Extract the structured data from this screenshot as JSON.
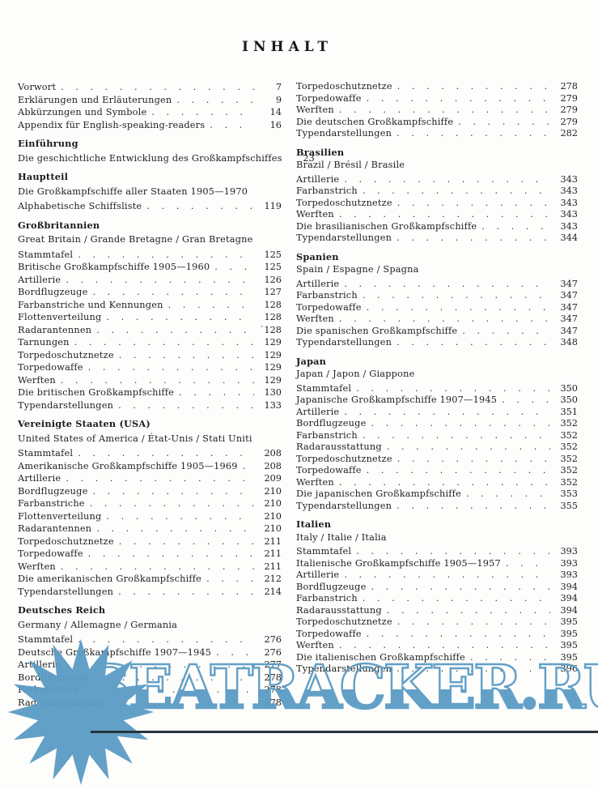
{
  "page": {
    "title": "INHALT"
  },
  "watermark": {
    "text": "SEATRACKER.RU",
    "color": "#5b9cc5",
    "icon": "sunburst-icon"
  },
  "toc": {
    "left": [
      {
        "entries": [
          {
            "label": "Vorwort",
            "page": "7"
          },
          {
            "label": "Erklärungen und Erläuterungen",
            "page": "9"
          },
          {
            "label": "Abkürzungen und Symbole",
            "page": "14"
          },
          {
            "label": "Appendix für English-speaking-readers",
            "page": "16"
          }
        ]
      },
      {
        "heading": "Einführung",
        "entries": [
          {
            "label": "Die geschichtliche Entwicklung des Großkampfschiffes",
            "page": "23"
          }
        ]
      },
      {
        "heading": "Hauptteil",
        "subtitle": "Die Großkampfschiffe aller Staaten 1905—1970",
        "entries": [
          {
            "label": "Alphabetische Schiffsliste",
            "page": "119"
          }
        ]
      },
      {
        "heading": "Großbritannien",
        "subtitle": "Great Britain / Grande Bretagne / Gran Bretagne",
        "entries": [
          {
            "label": "Stammtafel",
            "page": "125"
          },
          {
            "label": "Britische Großkampfschiffe 1905—1960",
            "page": "125"
          },
          {
            "label": "Artillerie",
            "page": "126"
          },
          {
            "label": "Bordflugzeuge",
            "page": "127"
          },
          {
            "label": "Farbanstriche und Kennungen",
            "page": "128"
          },
          {
            "label": "Flottenverteilung",
            "page": "128"
          },
          {
            "label": "Radarantennen",
            "page": "˙128"
          },
          {
            "label": "Tarnungen",
            "page": "129"
          },
          {
            "label": "Torpedoschutznetze",
            "page": "129"
          },
          {
            "label": "Torpedowaffe",
            "page": "129"
          },
          {
            "label": "Werften",
            "page": "129"
          },
          {
            "label": "Die britischen Großkampfschiffe",
            "page": "130"
          },
          {
            "label": "Typendarstellungen",
            "page": "133"
          }
        ]
      },
      {
        "heading": "Vereinigte Staaten (USA)",
        "subtitle": "United States of America / État-Unis / Stati Uniti",
        "entries": [
          {
            "label": "Stammtafel",
            "page": "208"
          },
          {
            "label": "Amerikanische Großkampfschiffe 1905—1969",
            "page": "208"
          },
          {
            "label": "Artillerie",
            "page": "209"
          },
          {
            "label": "Bordflugzeuge",
            "page": "210"
          },
          {
            "label": "Farbanstriche",
            "page": "210"
          },
          {
            "label": "Flottenverteilung",
            "page": "210"
          },
          {
            "label": "Radarantennen",
            "page": "210"
          },
          {
            "label": "Torpedoschutznetze",
            "page": "211"
          },
          {
            "label": "Torpedowaffe",
            "page": "211"
          },
          {
            "label": "Werften",
            "page": "211"
          },
          {
            "label": "Die amerikanischen Großkampfschiffe",
            "page": "212"
          },
          {
            "label": "Typendarstellungen",
            "page": "214"
          }
        ]
      },
      {
        "heading": "Deutsches Reich",
        "subtitle": "Germany / Allemagne / Germania",
        "entries": [
          {
            "label": "Stammtafel",
            "page": "276"
          },
          {
            "label": "Deutsche Großkampfschiffe 1907—1945",
            "page": "276"
          },
          {
            "label": "Artillerie",
            "page": "277"
          },
          {
            "label": "Bordflugzeuge",
            "page": "278"
          },
          {
            "label": "Farbanstrich",
            "page": "278"
          },
          {
            "label": "Radarausstattung",
            "page": "278"
          }
        ]
      }
    ],
    "right": [
      {
        "entries": [
          {
            "label": "Torpedoschutznetze",
            "page": "278"
          },
          {
            "label": "Torpedowaffe",
            "page": "279"
          },
          {
            "label": "Werften",
            "page": "279"
          },
          {
            "label": "Die deutschen Großkampfschiffe",
            "page": "279"
          },
          {
            "label": "Typendarstellungen",
            "page": "282"
          }
        ]
      },
      {
        "heading": "Brasilien",
        "subtitle": "Brazil / Brésil / Brasile",
        "entries": [
          {
            "label": "Artillerie",
            "page": "343"
          },
          {
            "label": "Farbanstrich",
            "page": "343"
          },
          {
            "label": "Torpedoschutznetze",
            "page": "343"
          },
          {
            "label": "Werften",
            "page": "343"
          },
          {
            "label": "Die brasilianischen Großkampfschiffe",
            "page": "343"
          },
          {
            "label": "Typendarstellungen",
            "page": "344"
          }
        ]
      },
      {
        "heading": "Spanien",
        "subtitle": "Spain / Espagne / Spagna",
        "entries": [
          {
            "label": "Artillerie",
            "page": "347"
          },
          {
            "label": "Farbanstrich",
            "page": "347"
          },
          {
            "label": "Torpedowaffe",
            "page": "347"
          },
          {
            "label": "Werften",
            "page": "347"
          },
          {
            "label": "Die spanischen Großkampfschiffe",
            "page": "347"
          },
          {
            "label": "Typendarstellungen",
            "page": "348"
          }
        ]
      },
      {
        "heading": "Japan",
        "subtitle": "Japan / Japon / Giappone",
        "entries": [
          {
            "label": "Stammtafel",
            "page": "350"
          },
          {
            "label": "Japanische Großkampfschiffe 1907—1945",
            "page": "350"
          },
          {
            "label": "Artillerie",
            "page": "351"
          },
          {
            "label": "Bordflugzeuge",
            "page": "352"
          },
          {
            "label": "Farbanstrich",
            "page": "352"
          },
          {
            "label": "Radarausstattung",
            "page": "352"
          },
          {
            "label": "Torpedoschutznetze",
            "page": "352"
          },
          {
            "label": "Torpedowaffe",
            "page": "352"
          },
          {
            "label": "Werften",
            "page": "352"
          },
          {
            "label": "Die japanischen Großkampfschiffe",
            "page": "353"
          },
          {
            "label": "Typendarstellungen",
            "page": "355"
          }
        ]
      },
      {
        "heading": "Italien",
        "subtitle": "Italy / Italie / Italia",
        "entries": [
          {
            "label": "Stammtafel",
            "page": "393"
          },
          {
            "label": "Italienische Großkampfschiffe 1905—1957",
            "page": "393"
          },
          {
            "label": "Artillerie",
            "page": "393"
          },
          {
            "label": "Bordflugzeuge",
            "page": "394"
          },
          {
            "label": "Farbanstrich",
            "page": "394"
          },
          {
            "label": "Radarausstattung",
            "page": "394"
          },
          {
            "label": "Torpedoschutznetze",
            "page": "395"
          },
          {
            "label": "Torpedowaffe",
            "page": "395"
          },
          {
            "label": "Werften",
            "page": "395"
          },
          {
            "label": "Die italienischen Großkampfschiffe",
            "page": "395"
          },
          {
            "label": "Typendarstellungen",
            "page": "396"
          }
        ]
      }
    ]
  }
}
